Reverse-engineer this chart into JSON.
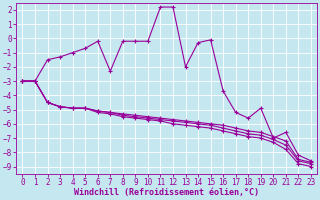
{
  "xlabel": "Windchill (Refroidissement éolien,°C)",
  "xlim": [
    -0.5,
    23.5
  ],
  "ylim": [
    -9.5,
    2.5
  ],
  "yticks": [
    2,
    1,
    0,
    -1,
    -2,
    -3,
    -4,
    -5,
    -6,
    -7,
    -8,
    -9
  ],
  "xticks": [
    0,
    1,
    2,
    3,
    4,
    5,
    6,
    7,
    8,
    9,
    10,
    11,
    12,
    13,
    14,
    15,
    16,
    17,
    18,
    19,
    20,
    21,
    22,
    23
  ],
  "bg_color": "#c5e8f0",
  "line_color": "#990099",
  "grid_color": "#ffffff",
  "lines": [
    {
      "x": [
        0,
        1,
        2,
        3,
        4,
        5,
        6,
        7,
        8,
        9,
        10,
        11,
        12,
        13,
        14,
        15,
        16,
        17,
        18,
        19,
        20,
        21,
        22,
        23
      ],
      "y": [
        -3.0,
        -3.0,
        -4.5,
        -4.8,
        -4.9,
        -4.9,
        -5.1,
        -5.2,
        -5.3,
        -5.4,
        -5.5,
        -5.6,
        -5.7,
        -5.8,
        -5.9,
        -6.0,
        -6.1,
        -6.3,
        -6.5,
        -6.6,
        -6.9,
        -7.2,
        -8.5,
        -8.7
      ]
    },
    {
      "x": [
        0,
        1,
        2,
        3,
        4,
        5,
        6,
        7,
        8,
        9,
        10,
        11,
        12,
        13,
        14,
        15,
        16,
        17,
        18,
        19,
        20,
        21,
        22,
        23
      ],
      "y": [
        -3.0,
        -3.0,
        -4.5,
        -4.8,
        -4.9,
        -4.9,
        -5.1,
        -5.2,
        -5.4,
        -5.5,
        -5.6,
        -5.7,
        -5.8,
        -5.9,
        -6.0,
        -6.1,
        -6.3,
        -6.5,
        -6.7,
        -6.8,
        -7.1,
        -7.5,
        -8.6,
        -8.8
      ]
    },
    {
      "x": [
        0,
        1,
        2,
        3,
        4,
        5,
        6,
        7,
        8,
        9,
        10,
        11,
        12,
        13,
        14,
        15,
        16,
        17,
        18,
        19,
        20,
        21,
        22,
        23
      ],
      "y": [
        -3.0,
        -3.0,
        -4.5,
        -4.8,
        -4.9,
        -4.9,
        -5.2,
        -5.3,
        -5.5,
        -5.6,
        -5.7,
        -5.8,
        -6.0,
        -6.1,
        -6.2,
        -6.3,
        -6.5,
        -6.7,
        -6.9,
        -7.0,
        -7.3,
        -7.8,
        -8.8,
        -9.0
      ]
    },
    {
      "x": [
        0,
        1,
        2,
        3,
        4,
        5,
        6,
        7,
        8,
        9,
        10,
        11,
        12,
        13,
        14,
        15,
        16,
        17,
        18,
        19,
        20,
        21,
        22,
        23
      ],
      "y": [
        -3.0,
        -3.0,
        -1.5,
        -1.3,
        -1.0,
        -0.7,
        -0.2,
        -2.3,
        -0.2,
        -0.2,
        -0.2,
        2.2,
        2.2,
        -2.0,
        -0.3,
        -0.1,
        -3.7,
        -5.2,
        -5.6,
        -4.9,
        -7.0,
        -6.6,
        -8.2,
        -8.6
      ]
    }
  ]
}
